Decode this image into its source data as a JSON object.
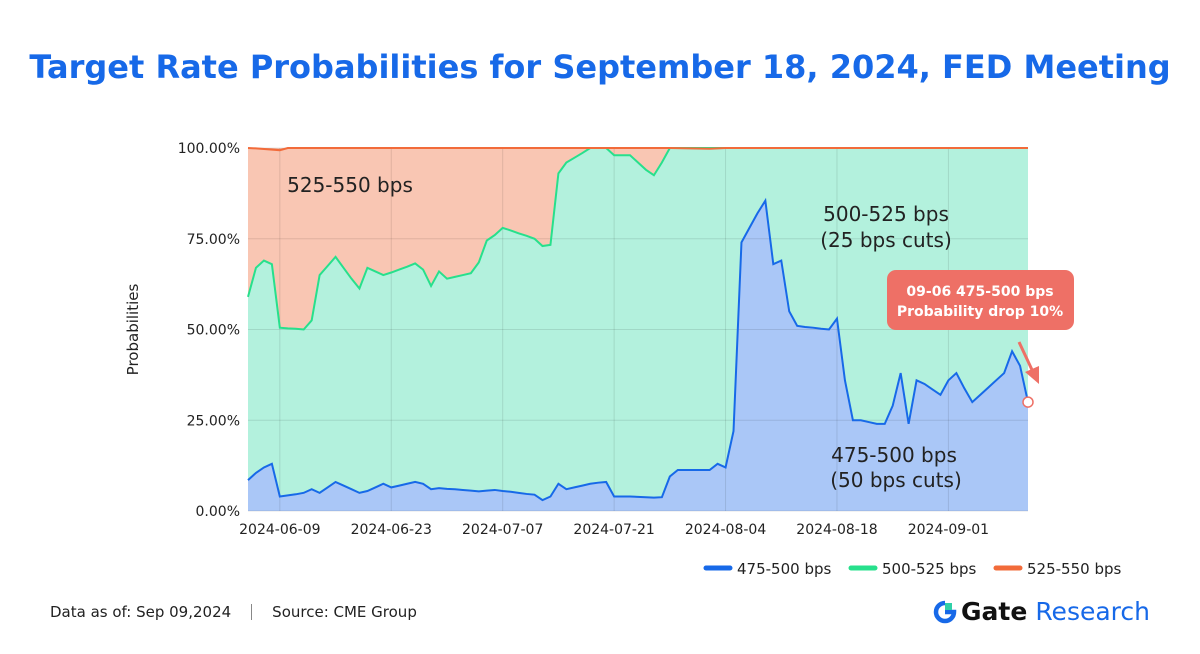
{
  "title": "Target Rate Probabilities for September 18, 2024, FED Meeting",
  "footer": {
    "data_as_of": "Data as of: Sep 09,2024",
    "source": "Source: CME Group"
  },
  "brand": {
    "name": "Gate",
    "suffix": "Research"
  },
  "chart_data": {
    "type": "area",
    "stacked": true,
    "ylabel": "Probabilities",
    "ylim": [
      0,
      100
    ],
    "yticks": [
      "0.00%",
      "25.00%",
      "50.00%",
      "75.00%",
      "100.00%"
    ],
    "xtick_labels": [
      "2024-06-09",
      "2024-06-23",
      "2024-07-07",
      "2024-07-21",
      "2024-08-04",
      "2024-08-18",
      "2024-09-01"
    ],
    "x_start": "2024-06-05",
    "x_end": "2024-09-09",
    "legend": [
      "475-500 bps",
      "500-525 bps",
      "525-550 bps"
    ],
    "colors": {
      "s475": "#1769e8",
      "s500": "#27e08c",
      "s525": "#f26b3a"
    },
    "series": [
      {
        "name": "475-500 bps",
        "points": [
          [
            0,
            8.5
          ],
          [
            1,
            10.5
          ],
          [
            2,
            12
          ],
          [
            3,
            13
          ],
          [
            4,
            4
          ],
          [
            5,
            4.3
          ],
          [
            6,
            4.6
          ],
          [
            7,
            5
          ],
          [
            8,
            6
          ],
          [
            9,
            5
          ],
          [
            10,
            6.5
          ],
          [
            11,
            8
          ],
          [
            12,
            7
          ],
          [
            13,
            6
          ],
          [
            14,
            5
          ],
          [
            15,
            5.5
          ],
          [
            16,
            6.5
          ],
          [
            17,
            7.5
          ],
          [
            18,
            6.5
          ],
          [
            19,
            7
          ],
          [
            20,
            7.5
          ],
          [
            21,
            8
          ],
          [
            22,
            7.5
          ],
          [
            23,
            6
          ],
          [
            24,
            6.3
          ],
          [
            25,
            6.1
          ],
          [
            26,
            6
          ],
          [
            27,
            5.8
          ],
          [
            28,
            5.6
          ],
          [
            29,
            5.4
          ],
          [
            30,
            5.6
          ],
          [
            31,
            5.8
          ],
          [
            32,
            5.5
          ],
          [
            33,
            5.3
          ],
          [
            34,
            5
          ],
          [
            35,
            4.7
          ],
          [
            36,
            4.5
          ],
          [
            37,
            3
          ],
          [
            38,
            4
          ],
          [
            39,
            7.5
          ],
          [
            40,
            6
          ],
          [
            41,
            6.5
          ],
          [
            42,
            7
          ],
          [
            43,
            7.5
          ],
          [
            44,
            7.8
          ],
          [
            45,
            8
          ],
          [
            46,
            4
          ],
          [
            47,
            4
          ],
          [
            48,
            4
          ],
          [
            49,
            3.9
          ],
          [
            50,
            3.8
          ],
          [
            51,
            3.7
          ],
          [
            52,
            3.8
          ],
          [
            53,
            9.5
          ],
          [
            54,
            11.3
          ],
          [
            55,
            11.3
          ],
          [
            56,
            11.3
          ],
          [
            57,
            11.3
          ],
          [
            58,
            11.3
          ],
          [
            59,
            13
          ],
          [
            60,
            12
          ],
          [
            61,
            22
          ],
          [
            62,
            74
          ],
          [
            63,
            78
          ],
          [
            64,
            82
          ],
          [
            65,
            85.5
          ],
          [
            66,
            68
          ],
          [
            67,
            69
          ],
          [
            68,
            55
          ],
          [
            69,
            51
          ],
          [
            70,
            50.7
          ],
          [
            71,
            50.5
          ],
          [
            72,
            50.2
          ],
          [
            73,
            50
          ],
          [
            74,
            53
          ],
          [
            75,
            36
          ],
          [
            76,
            25
          ],
          [
            77,
            25
          ],
          [
            78,
            24.5
          ],
          [
            79,
            24
          ],
          [
            80,
            24
          ],
          [
            81,
            29
          ],
          [
            82,
            38
          ],
          [
            83,
            24
          ],
          [
            84,
            36
          ],
          [
            85,
            35
          ],
          [
            86,
            33.5
          ],
          [
            87,
            32
          ],
          [
            88,
            36
          ],
          [
            89,
            38
          ],
          [
            90,
            33.8
          ],
          [
            91,
            30
          ],
          [
            92,
            32
          ],
          [
            93,
            34
          ],
          [
            94,
            36
          ],
          [
            95,
            38
          ],
          [
            96,
            44
          ],
          [
            97,
            40
          ],
          [
            98,
            30
          ]
        ]
      },
      {
        "name": "500-525 bps",
        "points": [
          [
            0,
            59
          ],
          [
            1,
            67
          ],
          [
            2,
            69
          ],
          [
            3,
            68
          ],
          [
            4,
            50.5
          ],
          [
            5,
            50.3
          ],
          [
            6,
            50.2
          ],
          [
            7,
            50
          ],
          [
            8,
            52.5
          ],
          [
            9,
            65
          ],
          [
            10,
            67.5
          ],
          [
            11,
            70
          ],
          [
            12,
            67
          ],
          [
            13,
            64
          ],
          [
            14,
            61.3
          ],
          [
            15,
            67
          ],
          [
            16,
            66
          ],
          [
            17,
            65
          ],
          [
            18,
            65.7
          ],
          [
            19,
            66.5
          ],
          [
            20,
            67.3
          ],
          [
            21,
            68.2
          ],
          [
            22,
            66.5
          ],
          [
            23,
            62
          ],
          [
            24,
            66
          ],
          [
            25,
            64
          ],
          [
            26,
            64.5
          ],
          [
            27,
            65
          ],
          [
            28,
            65.5
          ],
          [
            29,
            68.5
          ],
          [
            30,
            74.5
          ],
          [
            31,
            76
          ],
          [
            32,
            78
          ],
          [
            33,
            77.3
          ],
          [
            34,
            76.5
          ],
          [
            35,
            75.8
          ],
          [
            36,
            75
          ],
          [
            37,
            73
          ],
          [
            38,
            73.3
          ],
          [
            39,
            93
          ],
          [
            40,
            96
          ],
          [
            41,
            97.3
          ],
          [
            42,
            98.6
          ],
          [
            43,
            100
          ],
          [
            44,
            100
          ],
          [
            45,
            100
          ],
          [
            46,
            98
          ],
          [
            47,
            98
          ],
          [
            48,
            98
          ],
          [
            49,
            96
          ],
          [
            50,
            94
          ],
          [
            51,
            92.5
          ],
          [
            52,
            96
          ],
          [
            53,
            100
          ],
          [
            98,
            100
          ]
        ]
      },
      {
        "name": "525-550 bps",
        "points": [
          [
            0,
            100
          ],
          [
            98,
            100
          ]
        ]
      }
    ],
    "annotations": {
      "label_525": "525-550 bps",
      "label_500": [
        "500-525 bps",
        "(25 bps cuts)"
      ],
      "label_475": [
        "475-500 bps",
        "(50 bps cuts)"
      ],
      "callout": [
        "09-06 475-500 bps",
        "Probability drop 10%"
      ]
    }
  }
}
